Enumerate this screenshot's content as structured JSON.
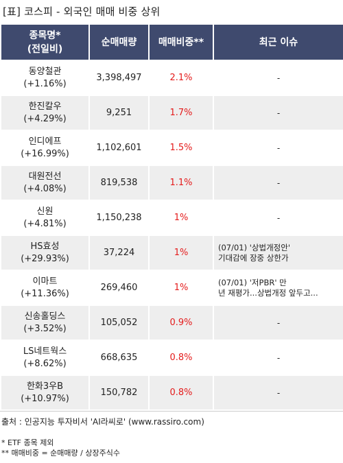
{
  "title": "[표] 코스피 - 외국인 매매 비중 상위",
  "header": {
    "col1_line1": "종목명*",
    "col1_line2": "(전일비)",
    "col2": "순매매량",
    "col3": "매매비중**",
    "col4": "최근 이슈"
  },
  "rows": [
    {
      "name": "동양철관",
      "change": "(+1.16%)",
      "volume": "3,398,497",
      "ratio": "2.1%",
      "issue1": "-",
      "issue2": ""
    },
    {
      "name": "한진칼우",
      "change": "(+4.29%)",
      "volume": "9,251",
      "ratio": "1.7%",
      "issue1": "-",
      "issue2": ""
    },
    {
      "name": "인디에프",
      "change": "(+16.99%)",
      "volume": "1,102,601",
      "ratio": "1.5%",
      "issue1": "-",
      "issue2": ""
    },
    {
      "name": "대원전선",
      "change": "(+4.08%)",
      "volume": "819,538",
      "ratio": "1.1%",
      "issue1": "-",
      "issue2": ""
    },
    {
      "name": "신원",
      "change": "(+4.81%)",
      "volume": "1,150,238",
      "ratio": "1%",
      "issue1": "-",
      "issue2": ""
    },
    {
      "name": "HS효성",
      "change": "(+29.93%)",
      "volume": "37,224",
      "ratio": "1%",
      "issue1": "(07/01) '상법개정안'",
      "issue2": "기대감에 장중 상한가"
    },
    {
      "name": "이마트",
      "change": "(+11.36%)",
      "volume": "269,460",
      "ratio": "1%",
      "issue1": "(07/01) '저PBR' 만",
      "issue2": "년 재평가...상법개정 앞두고..."
    },
    {
      "name": "신송홀딩스",
      "change": "(+3.52%)",
      "volume": "105,052",
      "ratio": "0.9%",
      "issue1": "-",
      "issue2": ""
    },
    {
      "name": "LS네트웍스",
      "change": "(+8.62%)",
      "volume": "668,635",
      "ratio": "0.8%",
      "issue1": "-",
      "issue2": ""
    },
    {
      "name": "한화3우B",
      "change": "(+10.97%)",
      "volume": "150,782",
      "ratio": "0.8%",
      "issue1": "-",
      "issue2": ""
    }
  ],
  "footer": {
    "source": "출처 : 인공지능 투자비서 'AI라씨로' (www.rassiro.com)",
    "note1": "* ETF 종목 제외",
    "note2": "** 매매비중 = 순매매량 / 상장주식수"
  },
  "colors": {
    "header_bg": "#3f4a6e",
    "ratio_text": "#e41b1b",
    "row_alt_bg": "#eeeeee"
  }
}
